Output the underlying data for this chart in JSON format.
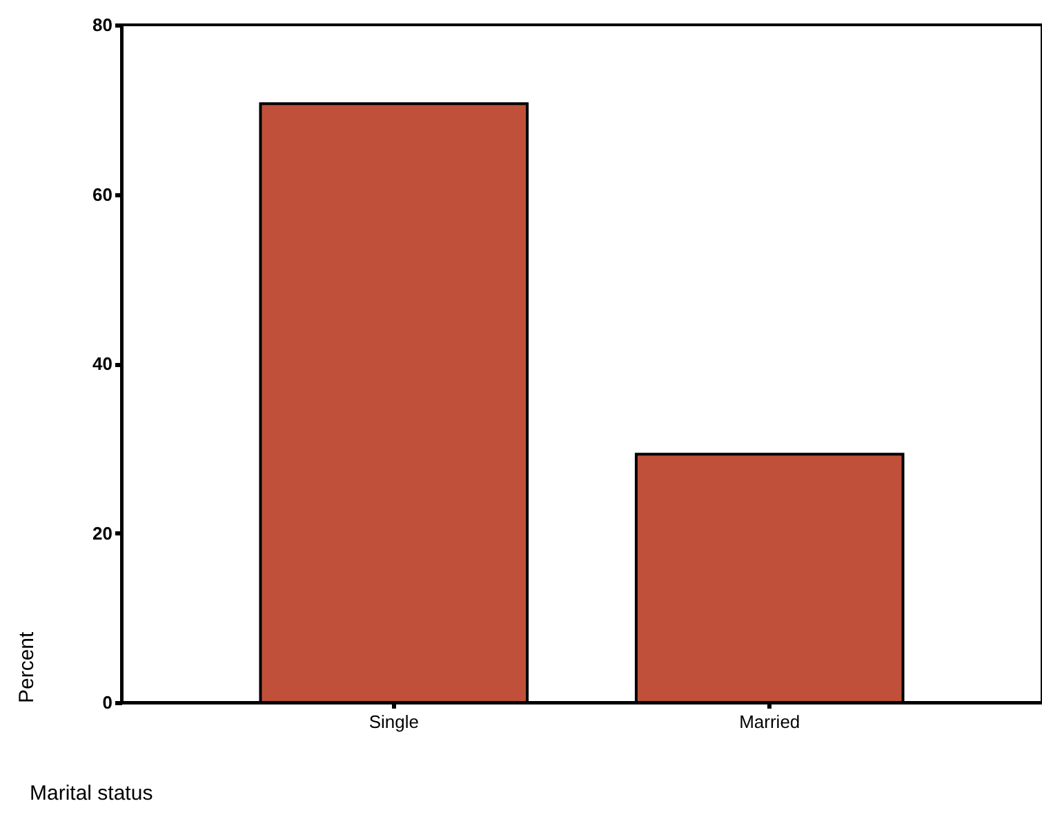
{
  "chart_data": {
    "type": "bar",
    "xlabel": "Marital status",
    "ylabel": "Percent",
    "categories": [
      "Single",
      "Married"
    ],
    "values": [
      70.7,
      29.3
    ],
    "color": "#c0503a",
    "ylim": [
      0,
      80
    ],
    "yticks": [
      0,
      20,
      40,
      60,
      80
    ],
    "grid": false
  }
}
